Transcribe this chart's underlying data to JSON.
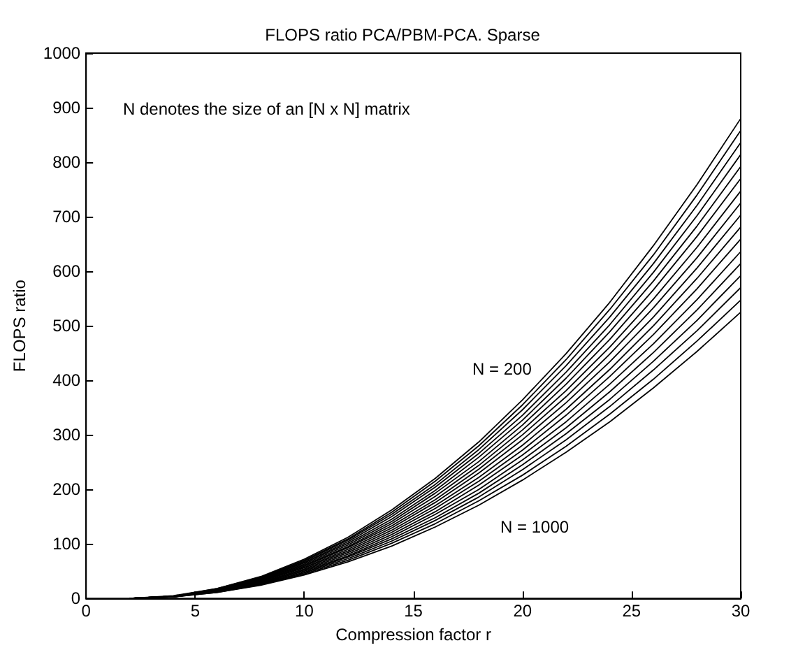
{
  "chart_data": {
    "type": "line",
    "title": "FLOPS ratio PCA/PBM-PCA. Sparse",
    "xlabel": "Compression factor r",
    "ylabel": "FLOPS ratio",
    "x": [
      2,
      4,
      6,
      8,
      10,
      12,
      14,
      16,
      18,
      20,
      22,
      24,
      26,
      28,
      30
    ],
    "series": [
      {
        "color": "#000000",
        "values": [
          0,
          5,
          18,
          40,
          72,
          112,
          162,
          220,
          287,
          364,
          449,
          543,
          647,
          759,
          880
        ]
      },
      {
        "color": "#000000",
        "values": [
          0,
          4,
          18,
          39,
          70,
          109,
          158,
          215,
          280,
          355,
          438,
          530,
          630,
          740,
          858
        ]
      },
      {
        "color": "#000000",
        "values": [
          0,
          4,
          17,
          38,
          68,
          107,
          154,
          209,
          273,
          346,
          427,
          516,
          614,
          721,
          836
        ]
      },
      {
        "color": "#000000",
        "values": [
          0,
          4,
          17,
          37,
          66,
          104,
          150,
          204,
          266,
          336,
          415,
          502,
          598,
          702,
          814
        ]
      },
      {
        "color": "#000000",
        "values": [
          0,
          4,
          16,
          36,
          65,
          101,
          145,
          198,
          259,
          327,
          404,
          489,
          582,
          683,
          792
        ]
      },
      {
        "color": "#000000",
        "values": [
          0,
          4,
          16,
          35,
          63,
          98,
          141,
          193,
          251,
          318,
          393,
          475,
          566,
          664,
          770
        ]
      },
      {
        "color": "#000000",
        "values": [
          0,
          4,
          15,
          34,
          61,
          95,
          137,
          187,
          244,
          309,
          381,
          461,
          549,
          644,
          747
        ]
      },
      {
        "color": "#000000",
        "values": [
          0,
          4,
          15,
          33,
          59,
          93,
          133,
          181,
          237,
          300,
          370,
          448,
          533,
          625,
          725
        ]
      },
      {
        "color": "#000000",
        "values": [
          0,
          4,
          14,
          32,
          57,
          90,
          129,
          176,
          230,
          291,
          359,
          434,
          516,
          606,
          703
        ]
      },
      {
        "color": "#000000",
        "values": [
          0,
          4,
          14,
          31,
          56,
          87,
          125,
          170,
          222,
          281,
          347,
          420,
          500,
          587,
          681
        ]
      },
      {
        "color": "#000000",
        "values": [
          0,
          3,
          13,
          30,
          54,
          84,
          121,
          165,
          215,
          272,
          336,
          407,
          484,
          568,
          659
        ]
      },
      {
        "color": "#000000",
        "values": [
          0,
          3,
          13,
          29,
          52,
          81,
          117,
          159,
          208,
          263,
          324,
          393,
          467,
          548,
          636
        ]
      },
      {
        "color": "#000000",
        "values": [
          0,
          3,
          13,
          28,
          50,
          78,
          113,
          154,
          200,
          254,
          313,
          379,
          451,
          529,
          614
        ]
      },
      {
        "color": "#000000",
        "values": [
          0,
          3,
          12,
          27,
          48,
          76,
          109,
          148,
          193,
          245,
          302,
          365,
          435,
          510,
          592
        ]
      },
      {
        "color": "#000000",
        "values": [
          0,
          3,
          12,
          26,
          47,
          73,
          105,
          143,
          186,
          236,
          291,
          352,
          419,
          491,
          570
        ]
      },
      {
        "color": "#000000",
        "values": [
          0,
          3,
          11,
          25,
          45,
          70,
          101,
          137,
          179,
          226,
          279,
          338,
          402,
          472,
          547
        ]
      },
      {
        "color": "#000000",
        "values": [
          0,
          3,
          11,
          24,
          43,
          67,
          96,
          131,
          171,
          217,
          268,
          324,
          386,
          453,
          525
        ]
      }
    ],
    "annotations": [
      "N denotes the size of an [N x N] matrix",
      "N = 200",
      "N = 1000"
    ],
    "xlim": [
      0,
      30
    ],
    "xticks": [
      0,
      5,
      10,
      15,
      20,
      25,
      30
    ],
    "ylim": [
      0,
      1000
    ],
    "yticks": [
      0,
      100,
      200,
      300,
      400,
      500,
      600,
      700,
      800,
      900,
      1000
    ],
    "grid": false,
    "marker": "none",
    "line_style": "solid"
  }
}
